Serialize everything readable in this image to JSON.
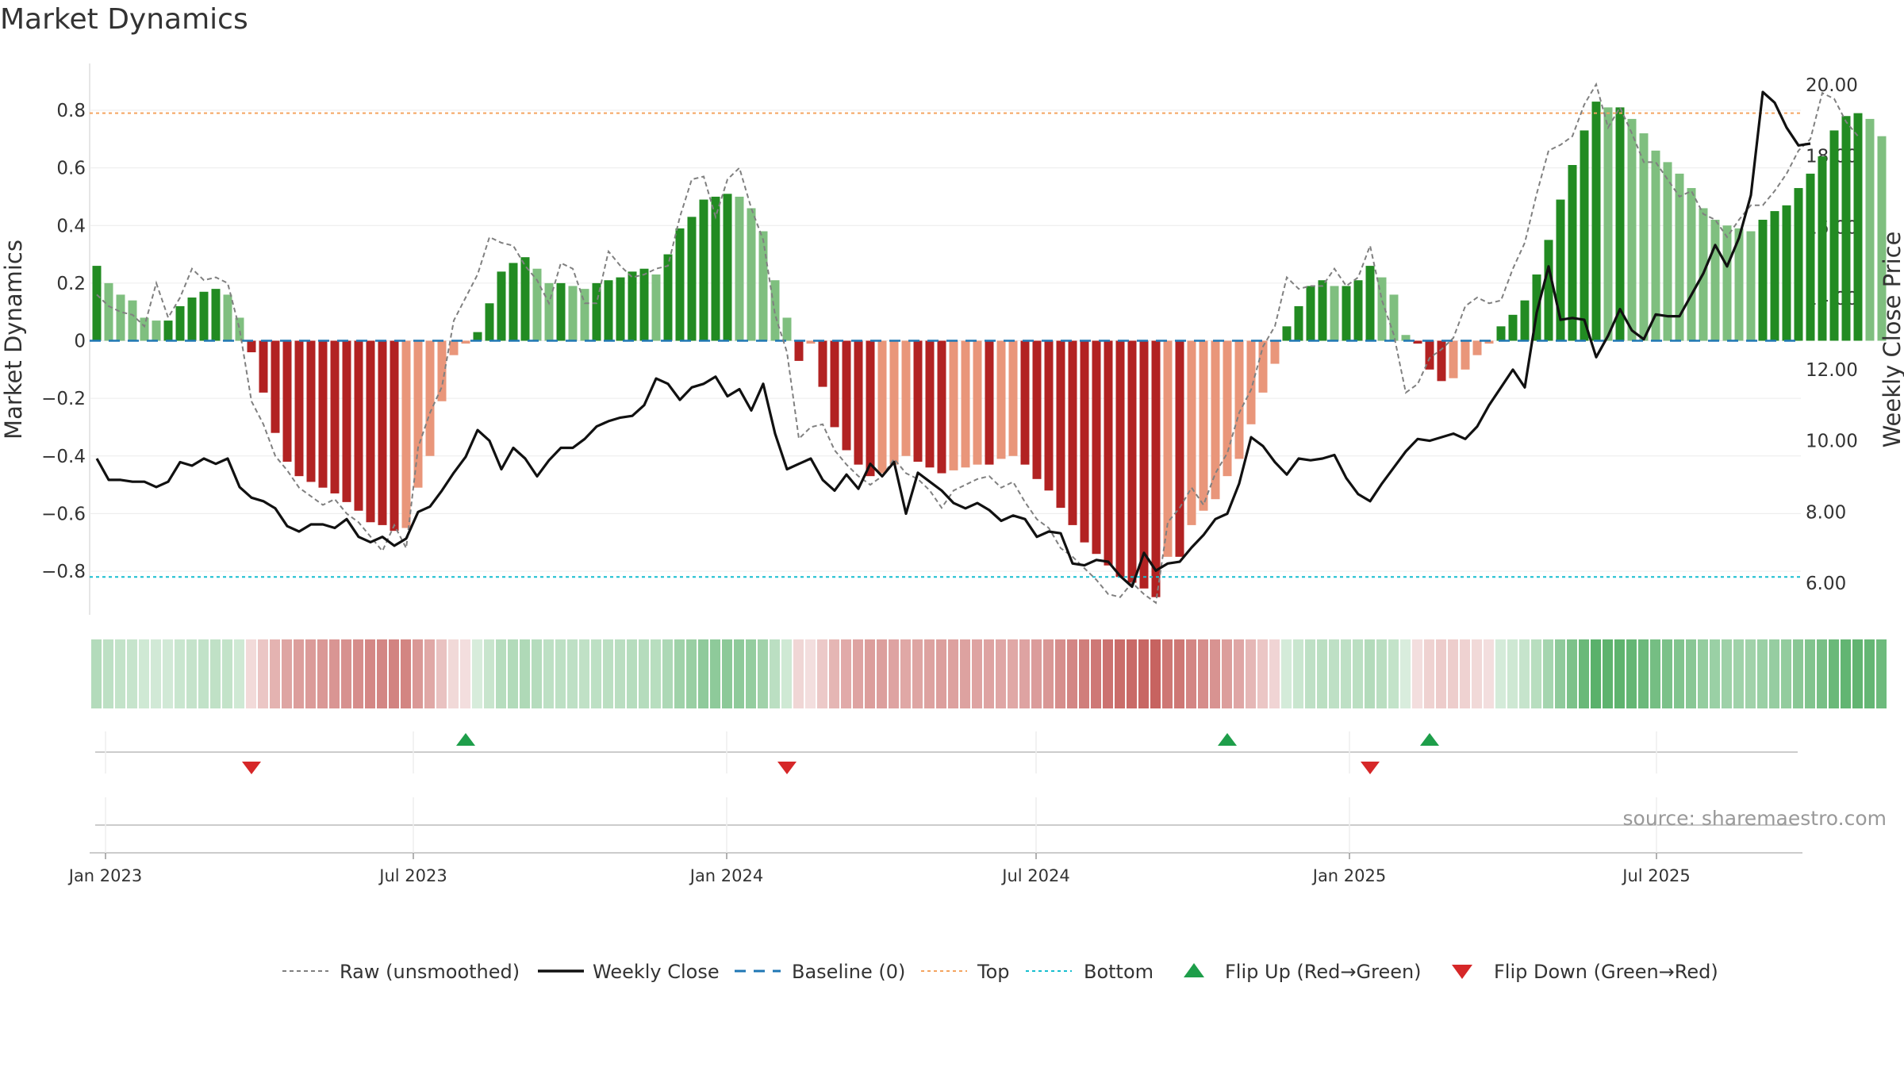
{
  "title": "Market Dynamics",
  "source": "source: sharemaestro.com",
  "colors": {
    "green_strong": "#228b22",
    "green_light": "#7fbf7f",
    "red_strong": "#b22222",
    "red_light": "#e9967a",
    "raw_line": "#808080",
    "close_line": "#111111",
    "baseline": "#1f77b4",
    "top_line": "#f4a460",
    "bottom_line": "#17becf",
    "flip_up": "#1e9e4a",
    "flip_down": "#d62728"
  },
  "chart_data": {
    "type": "bar",
    "title": "Market Dynamics",
    "ylabel_left": "Market Dynamics",
    "ylabel_right": "Weekly Close Price",
    "ylim_left": [
      -0.95,
      0.97
    ],
    "ylim_right": [
      5.0,
      20.8
    ],
    "left_ticks": [
      0.8,
      0.6,
      0.4,
      0.2,
      0,
      -0.2,
      -0.4,
      -0.6,
      -0.8
    ],
    "left_tick_labels": [
      "0.8",
      "0.6",
      "0.4",
      "0.2",
      "0",
      "−0.2",
      "−0.4",
      "−0.6",
      "−0.8"
    ],
    "right_ticks": [
      20,
      18,
      16,
      14,
      12,
      10,
      8,
      6
    ],
    "right_tick_labels": [
      "20.00",
      "18.00",
      "16.00",
      "14.00",
      "12.00",
      "10.00",
      "8.00",
      "6.00"
    ],
    "x_tick_labels": [
      "Jan 2023",
      "Jul 2023",
      "Jan 2024",
      "Jul 2024",
      "Jan 2025",
      "Jul 2025"
    ],
    "x_tick_weeks": [
      0,
      26,
      52,
      78,
      104,
      130
    ],
    "top": 0.79,
    "bottom": -0.82,
    "baseline": 0,
    "grid": true,
    "legend_position": "bottom",
    "legend": [
      "Raw (unsmoothed)",
      "Weekly Close",
      "Baseline (0)",
      "Top",
      "Bottom",
      "Flip Up (Red→Green)",
      "Flip Down (Green→Red)"
    ],
    "dynamics": [
      0.26,
      0.2,
      0.16,
      0.14,
      0.08,
      0.07,
      0.07,
      0.12,
      0.15,
      0.17,
      0.18,
      0.16,
      0.08,
      -0.04,
      -0.18,
      -0.32,
      -0.42,
      -0.47,
      -0.49,
      -0.51,
      -0.53,
      -0.56,
      -0.59,
      -0.63,
      -0.64,
      -0.66,
      -0.65,
      -0.51,
      -0.4,
      -0.21,
      -0.05,
      -0.01,
      0.03,
      0.13,
      0.24,
      0.27,
      0.29,
      0.25,
      0.2,
      0.2,
      0.19,
      0.18,
      0.2,
      0.21,
      0.22,
      0.24,
      0.25,
      0.23,
      0.3,
      0.39,
      0.43,
      0.49,
      0.5,
      0.51,
      0.5,
      0.46,
      0.38,
      0.21,
      0.08,
      -0.07,
      -0.01,
      -0.16,
      -0.3,
      -0.38,
      -0.43,
      -0.47,
      -0.46,
      -0.43,
      -0.4,
      -0.42,
      -0.44,
      -0.46,
      -0.45,
      -0.44,
      -0.43,
      -0.43,
      -0.41,
      -0.4,
      -0.43,
      -0.48,
      -0.52,
      -0.58,
      -0.64,
      -0.7,
      -0.74,
      -0.78,
      -0.82,
      -0.84,
      -0.86,
      -0.89,
      -0.75,
      -0.75,
      -0.64,
      -0.59,
      -0.55,
      -0.47,
      -0.41,
      -0.29,
      -0.18,
      -0.08,
      0.05,
      0.12,
      0.19,
      0.21,
      0.19,
      0.19,
      0.21,
      0.26,
      0.22,
      0.16,
      0.02,
      -0.01,
      -0.1,
      -0.14,
      -0.13,
      -0.1,
      -0.05,
      -0.01,
      0.05,
      0.09,
      0.14,
      0.23,
      0.35,
      0.49,
      0.61,
      0.73,
      0.83,
      0.81,
      0.81,
      0.77,
      0.72,
      0.66,
      0.62,
      0.58,
      0.53,
      0.46,
      0.42,
      0.4,
      0.39,
      0.38,
      0.42,
      0.45,
      0.47,
      0.53,
      0.58,
      0.64,
      0.73,
      0.78,
      0.79,
      0.77,
      0.71
    ],
    "raw": [
      0.16,
      0.12,
      0.1,
      0.09,
      0.05,
      0.2,
      0.08,
      0.15,
      0.25,
      0.21,
      0.22,
      0.2,
      0.04,
      -0.21,
      -0.29,
      -0.4,
      -0.45,
      -0.51,
      -0.54,
      -0.57,
      -0.55,
      -0.6,
      -0.63,
      -0.68,
      -0.73,
      -0.64,
      -0.72,
      -0.37,
      -0.25,
      -0.16,
      0.07,
      0.15,
      0.23,
      0.36,
      0.34,
      0.33,
      0.26,
      0.21,
      0.13,
      0.27,
      0.25,
      0.13,
      0.13,
      0.31,
      0.26,
      0.22,
      0.23,
      0.25,
      0.26,
      0.43,
      0.56,
      0.57,
      0.43,
      0.56,
      0.6,
      0.46,
      0.35,
      0.09,
      -0.04,
      -0.34,
      -0.3,
      -0.29,
      -0.38,
      -0.43,
      -0.47,
      -0.5,
      -0.47,
      -0.41,
      -0.46,
      -0.48,
      -0.52,
      -0.58,
      -0.52,
      -0.5,
      -0.48,
      -0.47,
      -0.51,
      -0.49,
      -0.56,
      -0.62,
      -0.65,
      -0.72,
      -0.75,
      -0.79,
      -0.83,
      -0.88,
      -0.89,
      -0.84,
      -0.88,
      -0.91,
      -0.63,
      -0.58,
      -0.51,
      -0.57,
      -0.46,
      -0.39,
      -0.25,
      -0.17,
      -0.02,
      0.05,
      0.22,
      0.18,
      0.19,
      0.19,
      0.25,
      0.19,
      0.22,
      0.33,
      0.14,
      0.02,
      -0.18,
      -0.15,
      -0.06,
      -0.03,
      0.01,
      0.12,
      0.15,
      0.13,
      0.14,
      0.25,
      0.34,
      0.51,
      0.66,
      0.68,
      0.71,
      0.82,
      0.89,
      0.74,
      0.81,
      0.72,
      0.62,
      0.62,
      0.56,
      0.5,
      0.52,
      0.44,
      0.42,
      0.36,
      0.42,
      0.47,
      0.47,
      0.52,
      0.58,
      0.66,
      0.7,
      0.86,
      0.84,
      0.76,
      0.71
    ],
    "weekly_close": [
      9.5,
      8.9,
      8.9,
      8.85,
      8.85,
      8.7,
      8.85,
      9.4,
      9.3,
      9.5,
      9.35,
      9.5,
      8.7,
      8.4,
      8.3,
      8.1,
      7.6,
      7.45,
      7.65,
      7.65,
      7.55,
      7.8,
      7.3,
      7.15,
      7.3,
      7.05,
      7.25,
      8.0,
      8.15,
      8.6,
      9.1,
      9.55,
      10.3,
      10.0,
      9.2,
      9.8,
      9.5,
      9.0,
      9.45,
      9.8,
      9.8,
      10.05,
      10.4,
      10.55,
      10.65,
      10.7,
      11.0,
      11.75,
      11.6,
      11.15,
      11.5,
      11.6,
      11.8,
      11.25,
      11.45,
      10.85,
      11.6,
      10.2,
      9.2,
      9.35,
      9.5,
      8.9,
      8.6,
      9.05,
      8.65,
      9.35,
      9.0,
      9.4,
      7.95,
      9.1,
      8.85,
      8.6,
      8.25,
      8.1,
      8.25,
      8.05,
      7.75,
      7.9,
      7.8,
      7.3,
      7.45,
      7.4,
      6.55,
      6.5,
      6.65,
      6.6,
      6.2,
      5.9,
      6.85,
      6.35,
      6.55,
      6.6,
      7.0,
      7.35,
      7.8,
      7.95,
      8.8,
      10.1,
      9.85,
      9.4,
      9.05,
      9.5,
      9.45,
      9.5,
      9.6,
      8.95,
      8.5,
      8.3,
      8.8,
      9.25,
      9.7,
      10.05,
      10.0,
      10.1,
      10.2,
      10.05,
      10.4,
      11.0,
      11.5,
      12.0,
      11.5,
      13.6,
      14.9,
      13.4,
      13.45,
      13.4,
      12.35,
      12.95,
      13.7,
      13.1,
      12.85,
      13.55,
      13.5,
      13.5,
      14.1,
      14.7,
      15.5,
      14.9,
      15.7,
      16.9,
      19.8,
      19.5,
      18.8,
      18.3,
      18.35
    ],
    "flip_up_weeks": [
      31,
      95,
      112
    ],
    "flip_down_weeks": [
      13,
      58,
      107
    ]
  }
}
